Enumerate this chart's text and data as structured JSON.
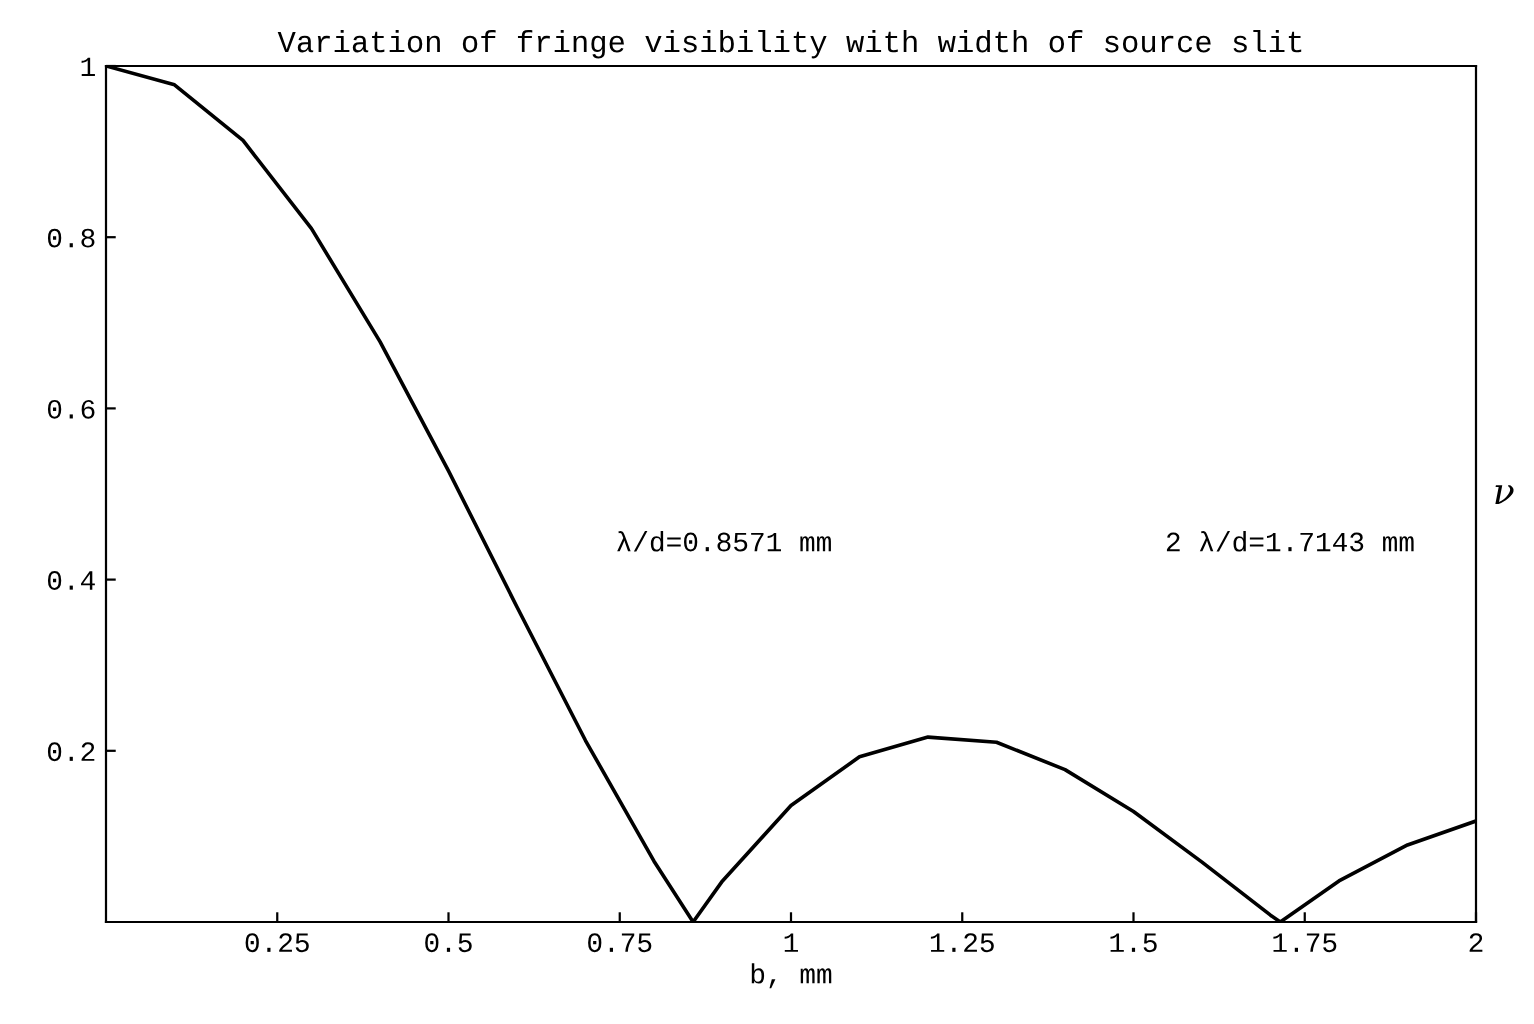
{
  "chart_data": {
    "type": "line",
    "title": "Variation of fringe visibility with width of source slit",
    "xlabel": "b, mm",
    "ylabel": "ν",
    "x": [
      0,
      0.1,
      0.2,
      0.3,
      0.4,
      0.5,
      0.6,
      0.7,
      0.8,
      0.8571,
      0.9,
      1.0,
      1.1,
      1.2,
      1.3,
      1.4,
      1.5,
      1.6,
      1.7,
      1.7143,
      1.8,
      1.9,
      2.0
    ],
    "series": [
      {
        "color": "#000000",
        "values": [
          1,
          0.978,
          0.913,
          0.81,
          0.678,
          0.527,
          0.368,
          0.212,
          0.071,
          0,
          0.048,
          0.136,
          0.193,
          0.216,
          0.21,
          0.178,
          0.129,
          0.07,
          0.008,
          0,
          0.048,
          0.09,
          0.118
        ]
      }
    ],
    "xlim": [
      0,
      2
    ],
    "ylim": [
      0,
      1
    ],
    "xticks": [
      0.25,
      0.5,
      0.75,
      1,
      1.25,
      1.5,
      1.75,
      2
    ],
    "yticks": [
      0.2,
      0.4,
      0.6,
      0.8,
      1
    ],
    "annotations": [
      "λ/d=0.8571 mm",
      "2 λ/d=1.7143 mm"
    ],
    "grid": false,
    "legend": false,
    "marker": "none",
    "line_style": "solid"
  }
}
